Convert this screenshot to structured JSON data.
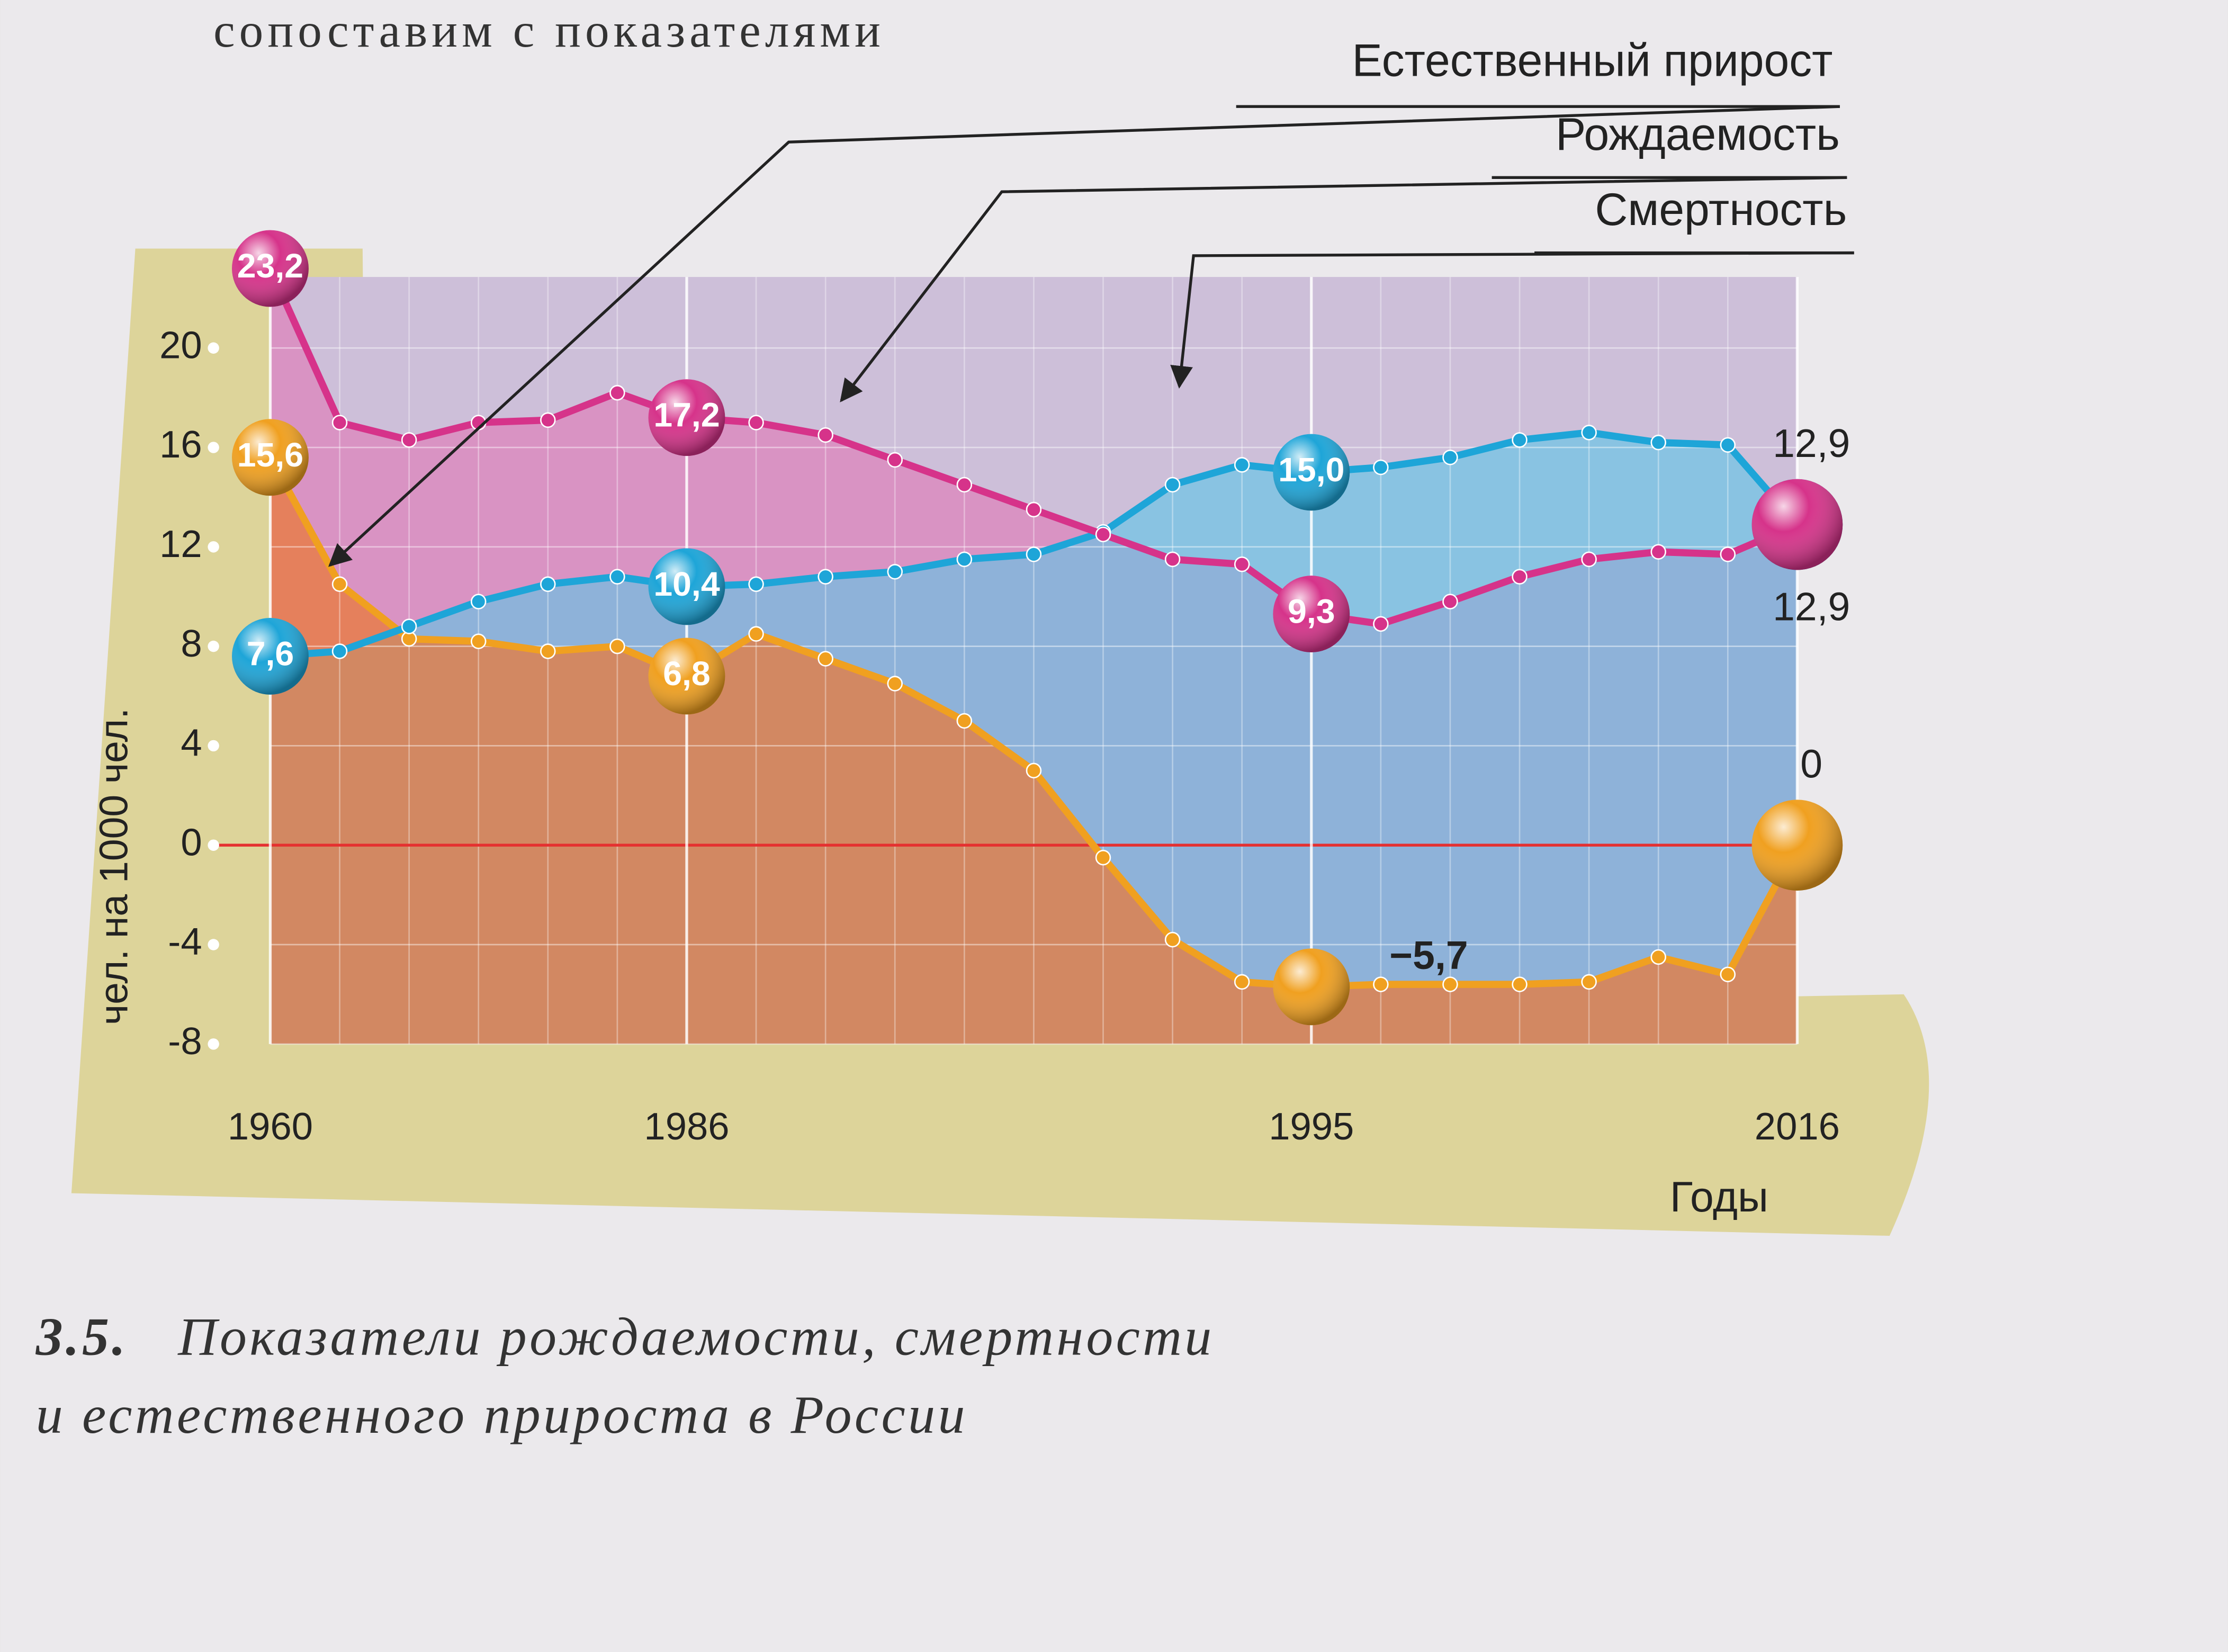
{
  "top_text": "сопоставим с показателями",
  "chart_data": {
    "type": "line",
    "y_label": "чел. на 1000 чел.",
    "x_label": "Годы",
    "categories": [
      "1960",
      null,
      null,
      null,
      null,
      null,
      "1986",
      null,
      null,
      null,
      null,
      null,
      null,
      null,
      null,
      "1995",
      null,
      null,
      null,
      null,
      null,
      null,
      "2016"
    ],
    "series": [
      {
        "name": "Рождаемость",
        "color": "#d6338a",
        "values": [
          23.2,
          17.0,
          16.3,
          17.0,
          17.1,
          18.2,
          17.2,
          17.0,
          16.5,
          15.5,
          14.5,
          13.5,
          12.5,
          11.5,
          11.3,
          9.3,
          8.9,
          9.8,
          10.8,
          11.5,
          11.8,
          11.7,
          12.9
        ],
        "value_labels": [
          "23,2",
          null,
          null,
          null,
          null,
          null,
          "17,2",
          null,
          null,
          null,
          null,
          null,
          null,
          null,
          null,
          "9,3",
          null,
          null,
          null,
          null,
          null,
          null,
          "12,9"
        ]
      },
      {
        "name": "Смертность",
        "color": "#1ea5d8",
        "values": [
          7.6,
          7.8,
          8.8,
          9.8,
          10.5,
          10.8,
          10.4,
          10.5,
          10.8,
          11.0,
          11.5,
          11.7,
          12.6,
          14.5,
          15.3,
          15.0,
          15.2,
          15.6,
          16.3,
          16.6,
          16.2,
          16.1,
          12.9
        ],
        "value_labels": [
          "7,6",
          null,
          null,
          null,
          null,
          null,
          "10,4",
          null,
          null,
          null,
          null,
          null,
          null,
          null,
          null,
          "15,0",
          null,
          null,
          null,
          null,
          null,
          null,
          "12,9"
        ]
      },
      {
        "name": "Естественный прирост",
        "color": "#f0a020",
        "values": [
          15.6,
          10.5,
          8.3,
          8.2,
          7.8,
          8.0,
          6.8,
          8.5,
          7.5,
          6.5,
          5.0,
          3.0,
          -0.5,
          -3.8,
          -5.5,
          -5.7,
          -5.6,
          -5.6,
          -5.6,
          -5.5,
          -4.5,
          -5.2,
          0
        ],
        "value_labels": [
          "15,6",
          null,
          null,
          null,
          null,
          null,
          "6,8",
          null,
          null,
          null,
          null,
          null,
          null,
          null,
          null,
          "−5,7",
          null,
          null,
          null,
          null,
          null,
          null,
          "0"
        ]
      }
    ],
    "ylim": [
      -8,
      24
    ],
    "yticks": [
      -8,
      -4,
      0,
      4,
      8,
      12,
      16,
      20
    ],
    "grid": true,
    "caption_number": "3.5.",
    "caption": [
      "Показатели рождаемости, смертности",
      "и естественного прироста в России"
    ]
  }
}
